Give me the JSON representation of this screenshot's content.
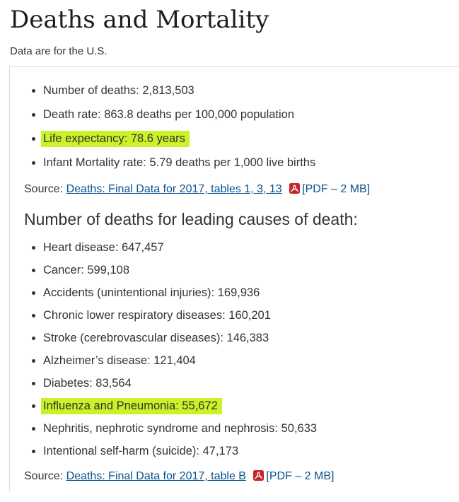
{
  "page": {
    "title": "Deaths and Mortality",
    "subtitle": "Data are for the U.S."
  },
  "colors": {
    "link": "#075290",
    "highlight": "#c9f227",
    "border": "#d8dadc",
    "pdf_icon_red": "#c9252d"
  },
  "stats": {
    "items": [
      {
        "text": "Number of deaths: 2,813,503",
        "highlight": false
      },
      {
        "text": "Death rate: 863.8 deaths per 100,000 population",
        "highlight": false
      },
      {
        "text": "Life expectancy: 78.6 years",
        "highlight": true
      },
      {
        "text": "Infant Mortality rate: 5.79 deaths per 1,000 live births",
        "highlight": false
      }
    ],
    "source": {
      "prefix": "Source: ",
      "link_text": "Deaths: Final Data for 2017, tables 1, 3, 13",
      "icon": "pdf-icon",
      "pdf_note": "[PDF – 2 MB]"
    }
  },
  "causes": {
    "heading": "Number of deaths for leading causes of death:",
    "items": [
      {
        "text": "Heart disease: 647,457",
        "highlight": false
      },
      {
        "text": "Cancer: 599,108",
        "highlight": false
      },
      {
        "text": "Accidents (unintentional injuries): 169,936",
        "highlight": false
      },
      {
        "text": "Chronic lower respiratory diseases: 160,201",
        "highlight": false
      },
      {
        "text": "Stroke (cerebrovascular diseases): 146,383",
        "highlight": false
      },
      {
        "text": "Alzheimer’s disease: 121,404",
        "highlight": false
      },
      {
        "text": "Diabetes: 83,564",
        "highlight": false
      },
      {
        "text": "Influenza and Pneumonia: 55,672",
        "highlight": true
      },
      {
        "text": "Nephritis, nephrotic syndrome and nephrosis: 50,633",
        "highlight": false
      },
      {
        "text": "Intentional self-harm (suicide): 47,173",
        "highlight": false
      }
    ],
    "source": {
      "prefix": "Source: ",
      "link_text": "Deaths: Final Data for 2017, table B",
      "icon": "pdf-icon",
      "pdf_note": "[PDF – 2 MB]"
    }
  }
}
